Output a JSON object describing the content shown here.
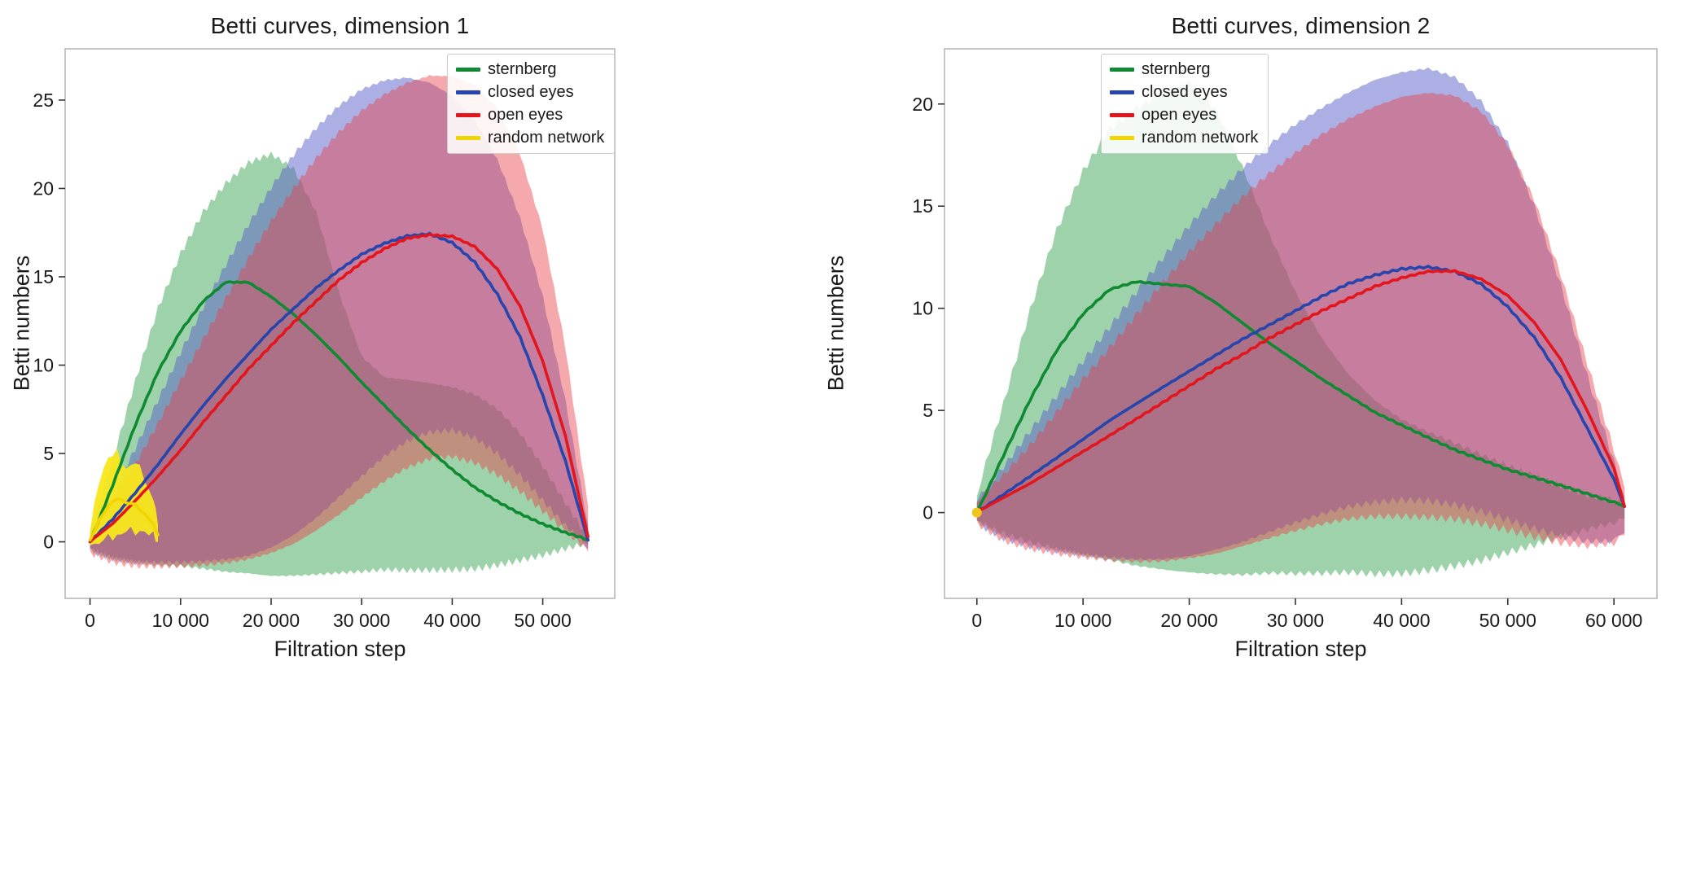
{
  "chart_data": [
    {
      "type": "line",
      "title": "Betti curves, dimension 1",
      "xlabel": "Filtration step",
      "ylabel": "Betti numbers",
      "xlim": [
        -2750,
        57950
      ],
      "ylim": [
        -3.2,
        27.9
      ],
      "grid": false,
      "legend_position": "upper-right-inside",
      "xticks": {
        "values": [
          0,
          10000,
          20000,
          30000,
          40000,
          50000
        ],
        "labels": [
          "0",
          "10 000",
          "20 000",
          "30 000",
          "40 000",
          "50 000"
        ]
      },
      "yticks": {
        "values": [
          0,
          5,
          10,
          15,
          20,
          25
        ],
        "labels": [
          "0",
          "5",
          "10",
          "15",
          "20",
          "25"
        ]
      },
      "legend": [
        {
          "label": "sternberg",
          "color": "#0f8a32"
        },
        {
          "label": "closed eyes",
          "color": "#2746ad"
        },
        {
          "label": "open eyes",
          "color": "#e4161d"
        },
        {
          "label": "random network",
          "color": "#f0d500"
        }
      ],
      "x": [
        0,
        2500,
        5000,
        7500,
        10000,
        12500,
        15000,
        17500,
        20000,
        22500,
        25000,
        27500,
        30000,
        32500,
        35000,
        37500,
        40000,
        42500,
        45000,
        47500,
        50000,
        52500,
        55000
      ],
      "bands": [
        {
          "name": "sternberg-band",
          "color": "#35a04e",
          "opacity": 0.48,
          "upper": [
            0.6,
            4.5,
            9.0,
            13.2,
            16.4,
            18.8,
            20.4,
            21.5,
            21.9,
            21.0,
            18.5,
            14.0,
            10.5,
            9.4,
            9.3,
            9.1,
            8.8,
            8.3,
            7.4,
            6.0,
            4.2,
            2.2,
            0.3
          ],
          "lower": [
            -0.3,
            -0.9,
            -1.2,
            -1.4,
            -1.5,
            -1.6,
            -1.7,
            -1.7,
            -1.8,
            -1.8,
            -1.8,
            -1.8,
            -1.8,
            -1.7,
            -1.7,
            -1.6,
            -1.5,
            -1.4,
            -1.2,
            -1.0,
            -0.8,
            -0.5,
            -0.2
          ]
        },
        {
          "name": "closed-eyes-band",
          "color": "#5a5fc9",
          "opacity": 0.5,
          "upper": [
            0.4,
            2.6,
            5.2,
            8.0,
            10.8,
            13.4,
            15.8,
            18.0,
            20.0,
            21.8,
            23.3,
            24.6,
            25.6,
            26.2,
            26.4,
            26.1,
            25.3,
            23.8,
            21.5,
            18.2,
            13.8,
            8.0,
            1.0
          ],
          "lower": [
            -0.4,
            -0.9,
            -1.2,
            -1.3,
            -1.3,
            -1.2,
            -1.0,
            -0.7,
            -0.2,
            0.5,
            1.4,
            2.5,
            3.6,
            4.7,
            5.6,
            6.2,
            6.4,
            6.0,
            5.1,
            3.8,
            2.3,
            0.8,
            -0.4
          ]
        },
        {
          "name": "open-eyes-band",
          "color": "#e8404a",
          "opacity": 0.45,
          "upper": [
            0.4,
            2.1,
            4.3,
            6.7,
            9.2,
            11.6,
            13.9,
            16.1,
            18.1,
            19.9,
            21.6,
            23.1,
            24.4,
            25.4,
            26.1,
            26.5,
            26.4,
            25.8,
            24.4,
            21.8,
            17.6,
            11.0,
            2.0
          ],
          "lower": [
            -0.5,
            -1.1,
            -1.4,
            -1.5,
            -1.5,
            -1.4,
            -1.2,
            -0.9,
            -0.5,
            0.0,
            0.7,
            1.5,
            2.4,
            3.3,
            4.1,
            4.7,
            4.9,
            4.6,
            3.9,
            2.9,
            1.7,
            0.5,
            -0.6
          ]
        },
        {
          "name": "random-network-band",
          "color": "#f8e71c",
          "opacity": 0.95,
          "x": [
            0,
            1000,
            2000,
            3000,
            4000,
            5000,
            6000,
            7000,
            7500
          ],
          "upper": [
            0.6,
            3.6,
            4.7,
            5.0,
            4.2,
            4.5,
            3.6,
            2.4,
            1.0
          ],
          "lower": [
            -0.2,
            -0.1,
            0.2,
            0.4,
            0.6,
            0.5,
            0.7,
            0.3,
            0.0
          ]
        }
      ],
      "series": [
        {
          "name": "sternberg",
          "color": "#0f8a32",
          "y": [
            0,
            3.2,
            6.6,
            9.6,
            11.9,
            13.6,
            14.7,
            14.7,
            13.9,
            12.9,
            11.7,
            10.4,
            9.0,
            7.7,
            6.4,
            5.2,
            4.1,
            3.1,
            2.3,
            1.6,
            1.0,
            0.5,
            0.1
          ]
        },
        {
          "name": "closed-eyes",
          "color": "#2746ad",
          "y": [
            0,
            1.3,
            2.8,
            4.4,
            6.1,
            7.7,
            9.2,
            10.6,
            12.0,
            13.2,
            14.4,
            15.4,
            16.3,
            16.9,
            17.3,
            17.4,
            16.9,
            15.8,
            14.0,
            11.6,
            8.3,
            4.6,
            0.1
          ]
        },
        {
          "name": "open-eyes",
          "color": "#e4161d",
          "y": [
            0,
            1.0,
            2.3,
            3.7,
            5.2,
            6.8,
            8.3,
            9.8,
            11.1,
            12.4,
            13.6,
            14.8,
            15.8,
            16.6,
            17.2,
            17.4,
            17.3,
            16.7,
            15.4,
            13.3,
            10.2,
            6.0,
            0.3
          ]
        },
        {
          "name": "random-network",
          "color": "#f0d500",
          "x": [
            0,
            1000,
            2000,
            3000,
            4000,
            5000,
            6000,
            7000,
            7500
          ],
          "y": [
            0.1,
            1.2,
            2.0,
            2.5,
            2.2,
            2.1,
            1.6,
            1.0,
            0.4
          ]
        }
      ],
      "markers": []
    },
    {
      "type": "line",
      "title": "Betti curves, dimension 2",
      "xlabel": "Filtration step",
      "ylabel": "Betti numbers",
      "xlim": [
        -3050,
        64050
      ],
      "ylim": [
        -4.2,
        22.7
      ],
      "grid": false,
      "legend_position": "upper-right-inside",
      "xticks": {
        "values": [
          0,
          10000,
          20000,
          30000,
          40000,
          50000,
          60000
        ],
        "labels": [
          "0",
          "10 000",
          "20 000",
          "30 000",
          "40 000",
          "50 000",
          "60 000"
        ]
      },
      "yticks": {
        "values": [
          0,
          5,
          10,
          15,
          20
        ],
        "labels": [
          "0",
          "5",
          "10",
          "15",
          "20"
        ]
      },
      "legend": [
        {
          "label": "sternberg",
          "color": "#0f8a32"
        },
        {
          "label": "closed eyes",
          "color": "#2746ad"
        },
        {
          "label": "open eyes",
          "color": "#e4161d"
        },
        {
          "label": "random network",
          "color": "#f0d500"
        }
      ],
      "x": [
        0,
        2500,
        5000,
        7500,
        10000,
        12500,
        15000,
        17500,
        20000,
        22500,
        25000,
        27500,
        30000,
        32500,
        35000,
        37500,
        40000,
        42500,
        45000,
        47500,
        50000,
        52500,
        55000,
        57500,
        60000,
        61000
      ],
      "bands": [
        {
          "name": "sternberg-band",
          "color": "#35a04e",
          "opacity": 0.48,
          "upper": [
            0.8,
            5.2,
            9.8,
            13.8,
            16.8,
            18.9,
            19.9,
            20.6,
            21.0,
            19.6,
            16.8,
            13.6,
            10.8,
            8.6,
            6.9,
            5.6,
            4.6,
            3.9,
            3.3,
            2.7,
            2.2,
            1.8,
            1.4,
            1.0,
            0.7,
            0.5
          ],
          "lower": [
            -0.3,
            -1.0,
            -1.5,
            -1.9,
            -2.2,
            -2.4,
            -2.6,
            -2.7,
            -2.8,
            -2.9,
            -3.0,
            -3.0,
            -3.1,
            -3.1,
            -3.0,
            -3.0,
            -2.9,
            -2.7,
            -2.5,
            -2.3,
            -2.0,
            -1.7,
            -1.3,
            -0.9,
            -0.5,
            -0.3
          ]
        },
        {
          "name": "closed-eyes-band",
          "color": "#5a5fc9",
          "opacity": 0.5,
          "upper": [
            0.5,
            2.1,
            3.9,
            5.7,
            7.5,
            9.2,
            10.9,
            12.5,
            14.0,
            15.4,
            16.7,
            17.9,
            19.0,
            19.9,
            20.7,
            21.3,
            21.6,
            21.7,
            21.2,
            20.0,
            18.0,
            15.0,
            11.2,
            6.8,
            2.6,
            0.8
          ],
          "lower": [
            -0.4,
            -1.2,
            -1.7,
            -2.0,
            -2.2,
            -2.3,
            -2.3,
            -2.2,
            -2.0,
            -1.7,
            -1.4,
            -1.0,
            -0.6,
            -0.2,
            0.2,
            0.5,
            0.7,
            0.7,
            0.5,
            0.1,
            -0.4,
            -0.9,
            -1.3,
            -1.5,
            -1.4,
            -1.0
          ]
        },
        {
          "name": "open-eyes-band",
          "color": "#e8404a",
          "opacity": 0.45,
          "upper": [
            0.5,
            1.7,
            3.2,
            4.9,
            6.6,
            8.2,
            9.8,
            11.3,
            12.7,
            14.0,
            15.3,
            16.5,
            17.6,
            18.6,
            19.4,
            20.0,
            20.4,
            20.5,
            20.3,
            19.5,
            17.9,
            15.3,
            11.7,
            7.4,
            3.2,
            1.2
          ],
          "lower": [
            -0.4,
            -1.3,
            -1.8,
            -2.1,
            -2.3,
            -2.4,
            -2.4,
            -2.3,
            -2.1,
            -1.9,
            -1.6,
            -1.3,
            -1.0,
            -0.7,
            -0.4,
            -0.2,
            -0.1,
            -0.1,
            -0.2,
            -0.5,
            -0.9,
            -1.3,
            -1.6,
            -1.7,
            -1.5,
            -1.1
          ]
        }
      ],
      "series": [
        {
          "name": "sternberg",
          "color": "#0f8a32",
          "y": [
            0,
            2.8,
            5.5,
            7.9,
            9.7,
            10.9,
            11.3,
            11.2,
            11.1,
            10.3,
            9.3,
            8.3,
            7.4,
            6.5,
            5.7,
            4.9,
            4.3,
            3.7,
            3.1,
            2.6,
            2.1,
            1.7,
            1.3,
            0.9,
            0.5,
            0.3
          ]
        },
        {
          "name": "closed-eyes",
          "color": "#2746ad",
          "y": [
            0,
            0.9,
            1.8,
            2.7,
            3.6,
            4.5,
            5.3,
            6.1,
            6.9,
            7.7,
            8.5,
            9.2,
            9.9,
            10.6,
            11.2,
            11.6,
            11.9,
            12.0,
            11.8,
            11.2,
            10.1,
            8.6,
            6.6,
            4.1,
            1.6,
            0.3
          ]
        },
        {
          "name": "open-eyes",
          "color": "#e4161d",
          "y": [
            0,
            0.7,
            1.4,
            2.2,
            3.0,
            3.8,
            4.6,
            5.4,
            6.2,
            7.0,
            7.7,
            8.5,
            9.2,
            9.9,
            10.5,
            11.1,
            11.5,
            11.8,
            11.8,
            11.4,
            10.6,
            9.3,
            7.5,
            5.0,
            2.2,
            0.3
          ]
        }
      ],
      "markers": [
        {
          "x": 0,
          "y": 0,
          "r": 6,
          "color": "#f0c419"
        }
      ]
    }
  ]
}
